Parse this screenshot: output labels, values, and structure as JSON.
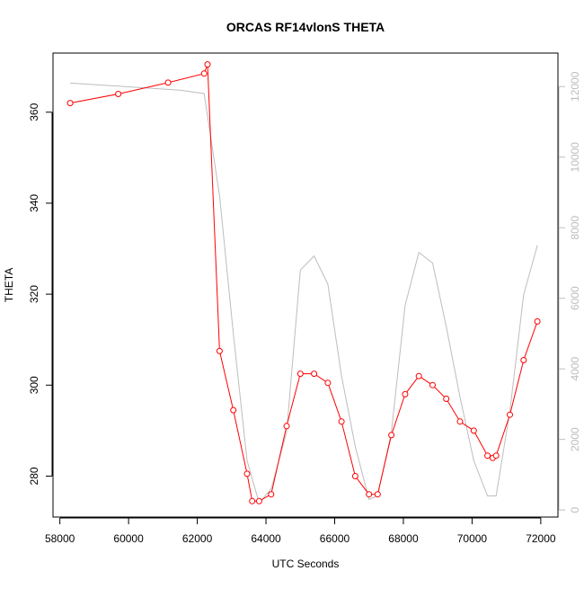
{
  "chart_data": {
    "type": "line",
    "title": "ORCAS RF14vlonS THETA",
    "xlabel": "UTC Seconds",
    "ylabel": "THETA",
    "xlim": [
      57800,
      72500
    ],
    "ylim": [
      271,
      373
    ],
    "y2lim": [
      -200,
      12950
    ],
    "x_ticks": [
      "58000",
      "60000",
      "62000",
      "64000",
      "66000",
      "68000",
      "70000",
      "72000"
    ],
    "y_ticks": [
      "280",
      "300",
      "320",
      "340",
      "360"
    ],
    "y2_ticks": [
      "0",
      "2000",
      "4000",
      "6000",
      "8000",
      "10000",
      "12000"
    ],
    "grid": false,
    "series": [
      {
        "color": "#ff0000",
        "axis": "left",
        "x": [
          58300,
          59700,
          61150,
          62200,
          62300,
          62650,
          63050,
          63450,
          63600,
          63800,
          64150,
          64600,
          65000,
          65400,
          65800,
          66200,
          66600,
          67000,
          67250,
          67650,
          68050,
          68450,
          68850,
          69250,
          69650,
          70050,
          70450,
          70600,
          70700,
          71100,
          71500,
          71900
        ],
        "y": [
          362,
          364,
          366.5,
          368.5,
          370.5,
          307.5,
          294.5,
          280.5,
          274.5,
          274.5,
          276,
          291,
          302.5,
          302.5,
          300.5,
          292,
          280,
          276,
          276,
          289,
          298,
          302,
          300,
          297,
          292,
          290,
          284.5,
          284,
          284.5,
          293.5,
          305.5,
          314
        ]
      },
      {
        "color": "#bdbdbd",
        "axis": "right",
        "x": [
          58300,
          61500,
          62200,
          62650,
          63050,
          63450,
          63800,
          64150,
          64600,
          65000,
          65400,
          65800,
          66200,
          66600,
          67000,
          67250,
          67650,
          68050,
          68450,
          68850,
          69250,
          69650,
          70050,
          70450,
          70700,
          71100,
          71500,
          71900
        ],
        "y": [
          12100,
          11900,
          11800,
          8900,
          5000,
          1400,
          200,
          600,
          2200,
          6800,
          7200,
          6400,
          3800,
          1800,
          300,
          400,
          2200,
          5800,
          7300,
          7000,
          5200,
          3200,
          1400,
          400,
          400,
          2800,
          6100,
          7500
        ]
      }
    ]
  }
}
